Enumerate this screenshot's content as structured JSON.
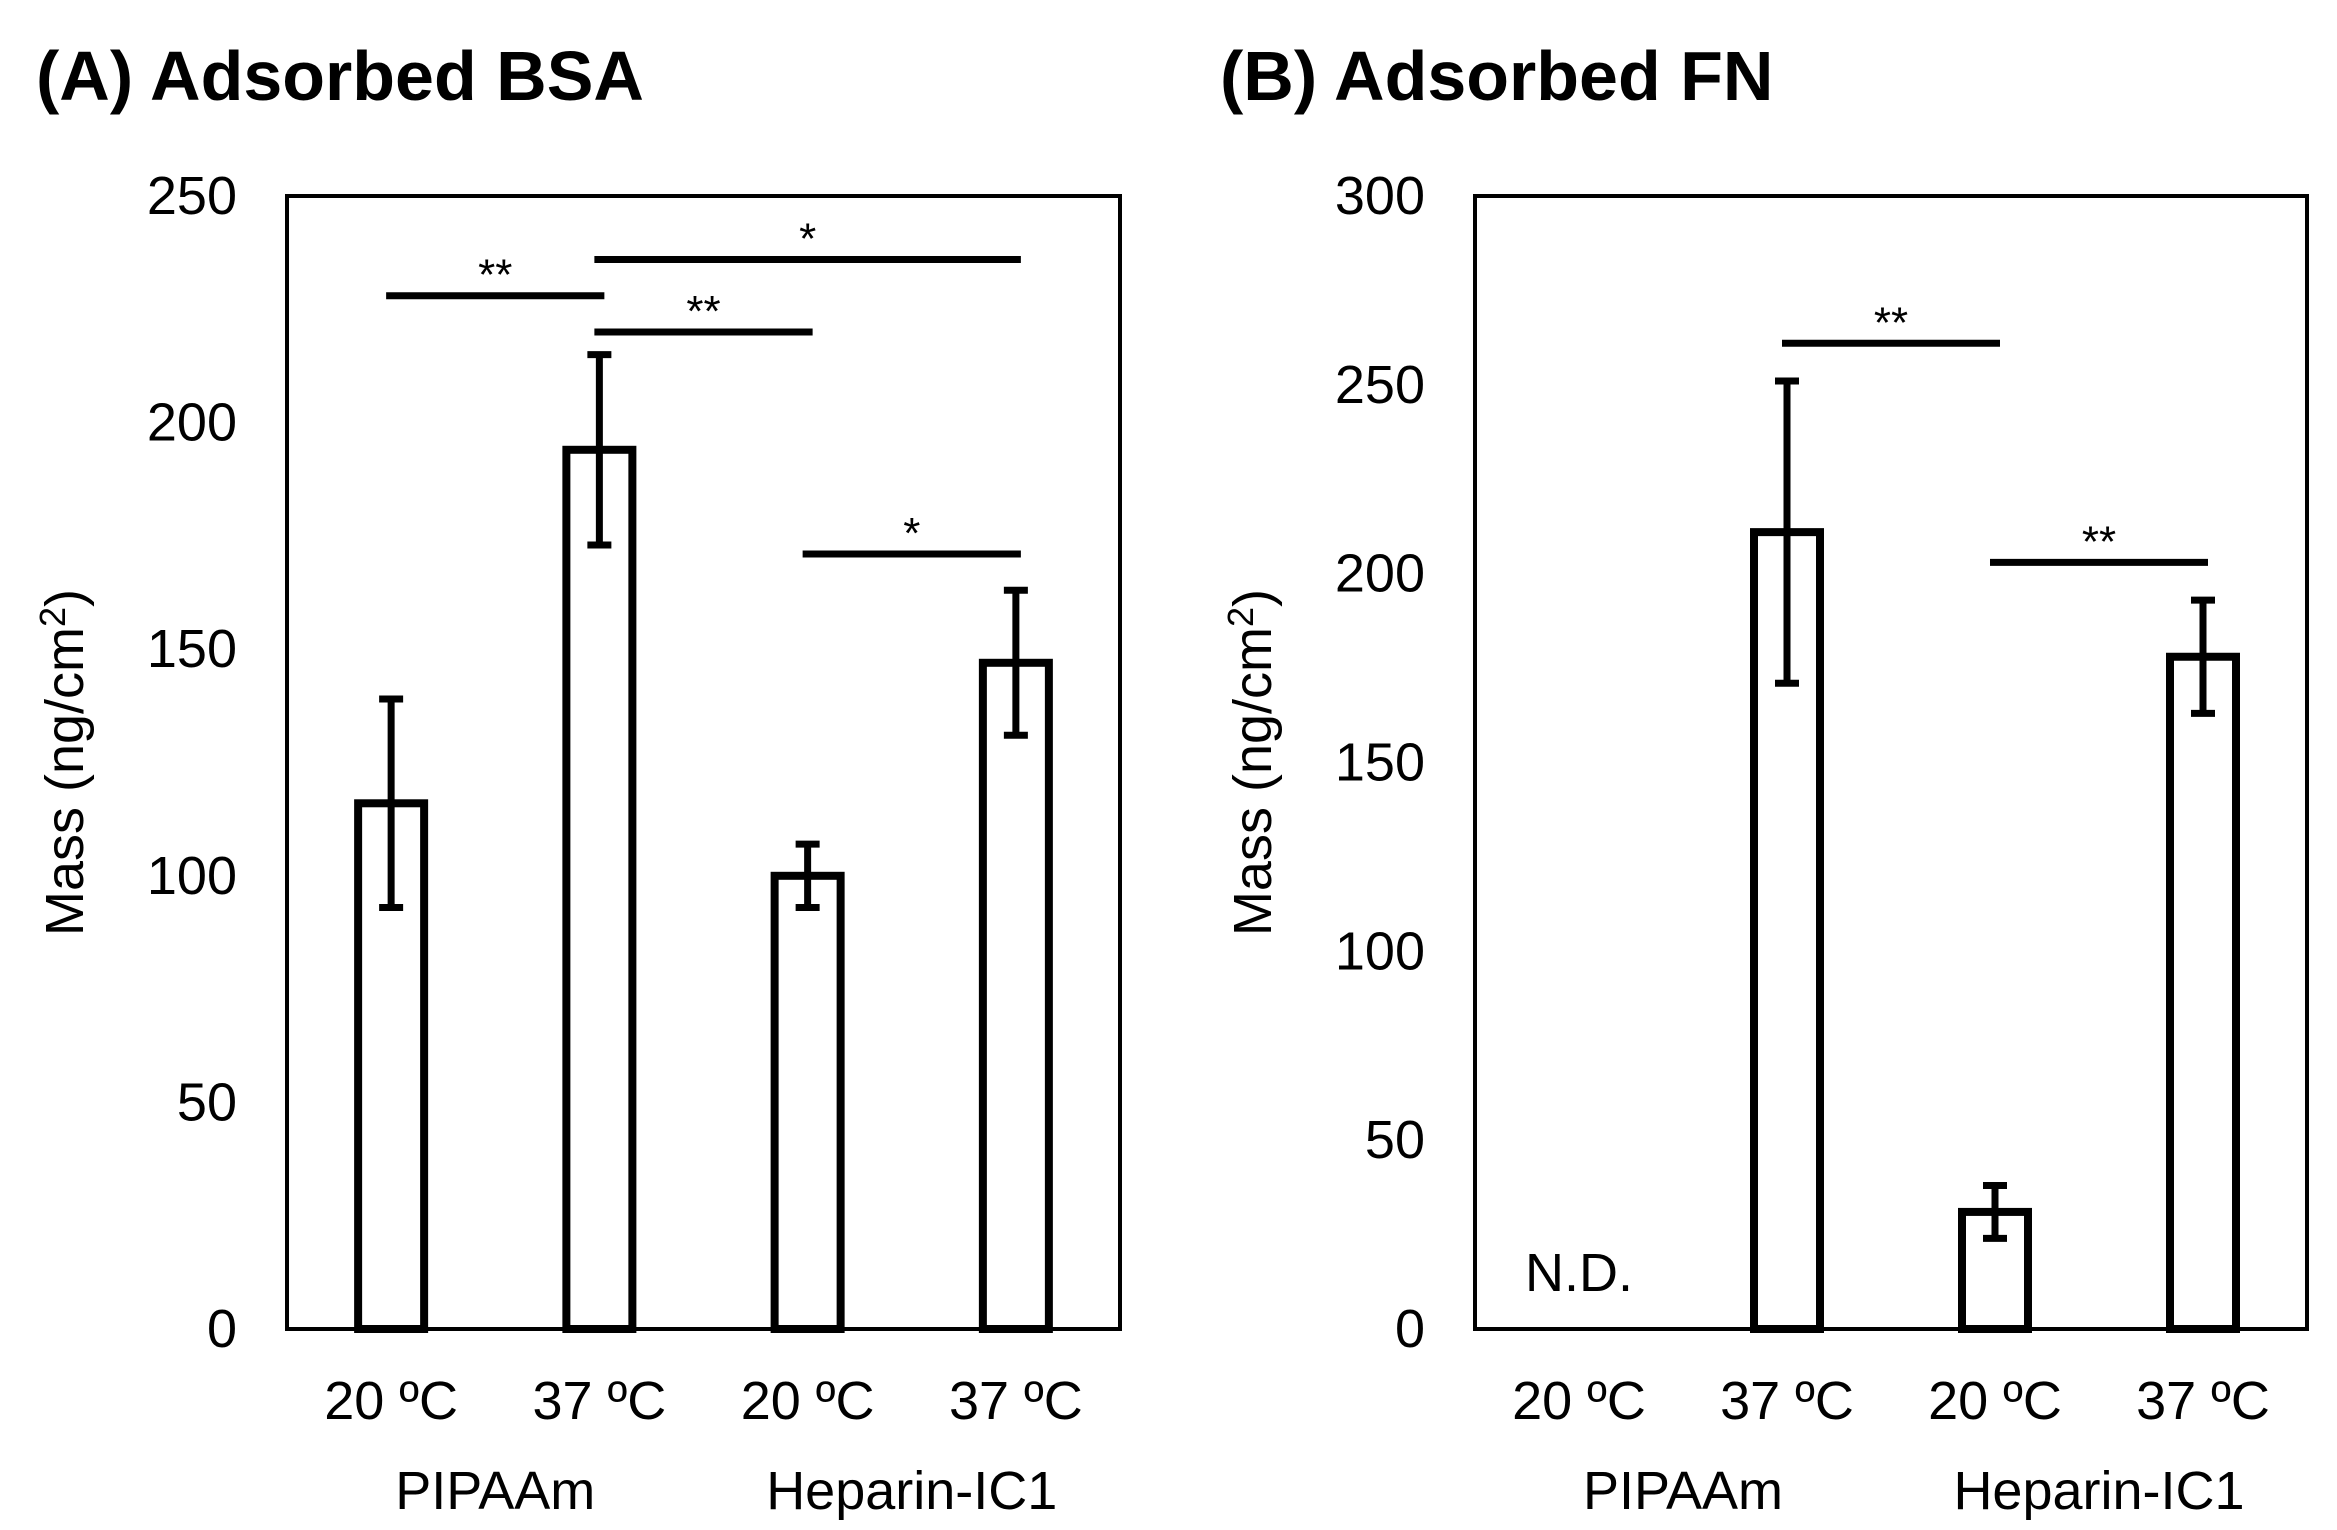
{
  "chart_data": [
    {
      "type": "bar",
      "title": "(A) Adsorbed BSA",
      "ylabel": "Mass (ng/cm",
      "ylabel_sup": "2",
      "ylabel_close": ")",
      "ylim": [
        0,
        250
      ],
      "yticks": [
        0,
        50,
        100,
        150,
        200,
        250
      ],
      "categories": [
        "20 ºC",
        "37 ºC",
        "20 ºC",
        "37 ºC"
      ],
      "groups": [
        {
          "label": "PIPAAm",
          "categories": [
            0,
            1
          ]
        },
        {
          "label": "Heparin-IC1",
          "categories": [
            2,
            3
          ]
        }
      ],
      "values": [
        116,
        194,
        100,
        147
      ],
      "errors": [
        23,
        21,
        7,
        16
      ],
      "significance": [
        {
          "from": 0,
          "to": 1,
          "label": "**",
          "y": 228
        },
        {
          "from": 1,
          "to": 3,
          "label": "*",
          "y": 236
        },
        {
          "from": 1,
          "to": 2,
          "label": "**",
          "y": 220
        },
        {
          "from": 2,
          "to": 3,
          "label": "*",
          "y": 171
        }
      ],
      "annotation": ""
    },
    {
      "type": "bar",
      "title": "(B) Adsorbed FN",
      "ylabel": "Mass (ng/cm",
      "ylabel_sup": "2",
      "ylabel_close": ")",
      "ylim": [
        0,
        300
      ],
      "yticks": [
        0,
        50,
        100,
        150,
        200,
        250,
        300
      ],
      "categories": [
        "20 ºC",
        "37 ºC",
        "20 ºC",
        "37 ºC"
      ],
      "groups": [
        {
          "label": "PIPAAm",
          "categories": [
            0,
            1
          ]
        },
        {
          "label": "Heparin-IC1",
          "categories": [
            2,
            3
          ]
        }
      ],
      "values": [
        null,
        211,
        31,
        178
      ],
      "errors": [
        null,
        40,
        7,
        15
      ],
      "significance": [
        {
          "from": 1,
          "to": 2,
          "label": "**",
          "y": 261
        },
        {
          "from": 2,
          "to": 3,
          "label": "**",
          "y": 203
        }
      ],
      "annotation": "N.D."
    }
  ]
}
